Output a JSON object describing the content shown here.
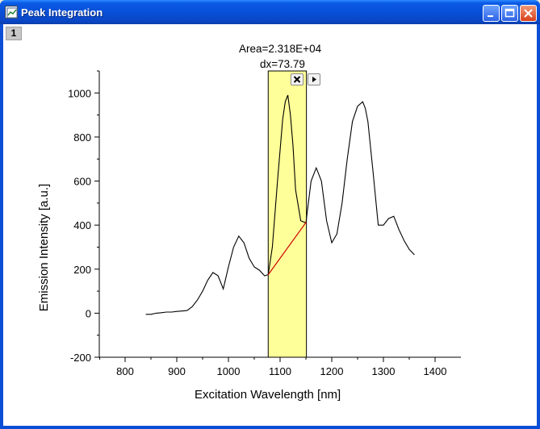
{
  "window": {
    "title": "Peak Integration"
  },
  "layer_tab": "1",
  "annotation": {
    "area": "Area=2.318E+04",
    "dx": "dx=73.79"
  },
  "chart_data": {
    "type": "line",
    "xlabel": "Excitation Wavelength [nm]",
    "ylabel": "Emission Intensity [a.u.]",
    "xlim": [
      750,
      1450
    ],
    "ylim": [
      -200,
      1100
    ],
    "xticks": [
      800,
      900,
      1000,
      1100,
      1200,
      1300,
      1400
    ],
    "yticks": [
      -200,
      0,
      200,
      400,
      600,
      800,
      1000
    ],
    "integration_range": [
      1077,
      1151
    ],
    "baseline": {
      "x": [
        1077,
        1151
      ],
      "y": [
        175,
        415
      ]
    },
    "highlight_color": "#ffff99",
    "line_color": "#000000",
    "baseline_color": "#cc0000",
    "series": [
      {
        "x": [
          840,
          850,
          860,
          870,
          880,
          890,
          900,
          910,
          920,
          930,
          940,
          950,
          960,
          970,
          980,
          990,
          1000,
          1010,
          1020,
          1030,
          1040,
          1050,
          1060,
          1070,
          1077,
          1085,
          1095,
          1105,
          1110,
          1115,
          1120,
          1125,
          1130,
          1140,
          1150,
          1160,
          1170,
          1180,
          1190,
          1200,
          1210,
          1220,
          1230,
          1240,
          1250,
          1260,
          1265,
          1270,
          1280,
          1290,
          1300,
          1310,
          1320,
          1330,
          1340,
          1350,
          1360
        ],
        "values": [
          -5,
          -5,
          0,
          2,
          5,
          5,
          8,
          10,
          12,
          30,
          60,
          100,
          150,
          185,
          170,
          110,
          210,
          300,
          350,
          320,
          250,
          210,
          195,
          170,
          175,
          300,
          600,
          880,
          960,
          990,
          900,
          760,
          560,
          420,
          410,
          600,
          660,
          600,
          420,
          320,
          360,
          500,
          700,
          870,
          940,
          960,
          930,
          870,
          640,
          400,
          400,
          430,
          440,
          380,
          330,
          290,
          265
        ]
      }
    ]
  }
}
